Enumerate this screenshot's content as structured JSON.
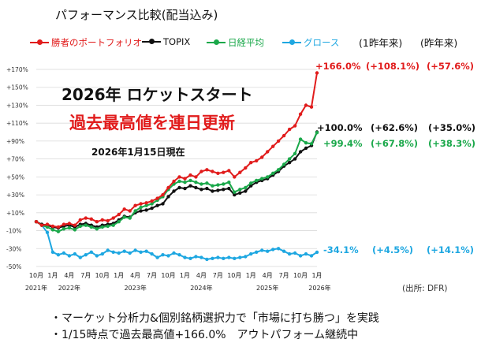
{
  "chart_data": {
    "type": "line",
    "title": "パフォーマンス比較(配当込み)",
    "y_ticks": [
      "+170%",
      "+150%",
      "+130%",
      "+110%",
      "+90%",
      "+70%",
      "+50%",
      "+30%",
      "+10%",
      "-10%",
      "-30%",
      "-50%"
    ],
    "ylim": [
      -50,
      170
    ],
    "x_ticks": [
      {
        "label": "10月",
        "t": 0
      },
      {
        "label": "1月",
        "t": 3
      },
      {
        "label": "4月",
        "t": 6
      },
      {
        "label": "7月",
        "t": 9
      },
      {
        "label": "10月",
        "t": 12
      },
      {
        "label": "1月",
        "t": 15
      },
      {
        "label": "4月",
        "t": 18
      },
      {
        "label": "7月",
        "t": 21
      },
      {
        "label": "10月",
        "t": 24
      },
      {
        "label": "1月",
        "t": 27
      },
      {
        "label": "4月",
        "t": 30
      },
      {
        "label": "7月",
        "t": 33
      },
      {
        "label": "10月",
        "t": 36
      },
      {
        "label": "1月",
        "t": 39
      },
      {
        "label": "4月",
        "t": 42
      },
      {
        "label": "7月",
        "t": 45
      },
      {
        "label": "10月",
        "t": 48
      },
      {
        "label": "1月",
        "t": 51
      }
    ],
    "year_labels": [
      {
        "label": "2021年",
        "t": 0
      },
      {
        "label": "2022年",
        "t": 6
      },
      {
        "label": "2023年",
        "t": 18
      },
      {
        "label": "2024年",
        "t": 30
      },
      {
        "label": "2025年",
        "t": 42
      },
      {
        "label": "2026年",
        "t": 51.5
      }
    ],
    "series": [
      {
        "name": "勝者のポートフォリオ",
        "color": "#e11c1c",
        "final_label": "+166.0%",
        "points": [
          [
            0,
            0
          ],
          [
            1,
            -4
          ],
          [
            2,
            -3
          ],
          [
            3,
            -5
          ],
          [
            4,
            -6
          ],
          [
            5,
            -3
          ],
          [
            6,
            -2
          ],
          [
            7,
            -4
          ],
          [
            8,
            2
          ],
          [
            9,
            4
          ],
          [
            10,
            3
          ],
          [
            11,
            0
          ],
          [
            12,
            2
          ],
          [
            13,
            1
          ],
          [
            14,
            4
          ],
          [
            15,
            8
          ],
          [
            16,
            14
          ],
          [
            17,
            12
          ],
          [
            18,
            18
          ],
          [
            19,
            20
          ],
          [
            20,
            21
          ],
          [
            21,
            23
          ],
          [
            22,
            26
          ],
          [
            23,
            30
          ],
          [
            24,
            38
          ],
          [
            25,
            45
          ],
          [
            26,
            50
          ],
          [
            27,
            48
          ],
          [
            28,
            52
          ],
          [
            29,
            50
          ],
          [
            30,
            56
          ],
          [
            31,
            58
          ],
          [
            32,
            56
          ],
          [
            33,
            54
          ],
          [
            34,
            55
          ],
          [
            35,
            57
          ],
          [
            36,
            50
          ],
          [
            37,
            55
          ],
          [
            38,
            60
          ],
          [
            39,
            66
          ],
          [
            40,
            68
          ],
          [
            41,
            72
          ],
          [
            42,
            78
          ],
          [
            43,
            84
          ],
          [
            44,
            90
          ],
          [
            45,
            96
          ],
          [
            46,
            103
          ],
          [
            47,
            107
          ],
          [
            48,
            120
          ],
          [
            49,
            130
          ],
          [
            50,
            128
          ],
          [
            51,
            166
          ]
        ]
      },
      {
        "name": "TOPIX",
        "color": "#111111",
        "final_label": "+100.0%",
        "points": [
          [
            0,
            0
          ],
          [
            1,
            -3
          ],
          [
            2,
            -4
          ],
          [
            3,
            -6
          ],
          [
            4,
            -7
          ],
          [
            5,
            -5
          ],
          [
            6,
            -4
          ],
          [
            7,
            -6
          ],
          [
            8,
            -3
          ],
          [
            9,
            -2
          ],
          [
            10,
            -4
          ],
          [
            11,
            -6
          ],
          [
            12,
            -4
          ],
          [
            13,
            -3
          ],
          [
            14,
            -2
          ],
          [
            15,
            2
          ],
          [
            16,
            6
          ],
          [
            17,
            5
          ],
          [
            18,
            10
          ],
          [
            19,
            12
          ],
          [
            20,
            13
          ],
          [
            21,
            15
          ],
          [
            22,
            18
          ],
          [
            23,
            20
          ],
          [
            24,
            28
          ],
          [
            25,
            34
          ],
          [
            26,
            38
          ],
          [
            27,
            37
          ],
          [
            28,
            40
          ],
          [
            29,
            38
          ],
          [
            30,
            36
          ],
          [
            31,
            37
          ],
          [
            32,
            34
          ],
          [
            33,
            35
          ],
          [
            34,
            36
          ],
          [
            35,
            37
          ],
          [
            36,
            30
          ],
          [
            37,
            32
          ],
          [
            38,
            34
          ],
          [
            39,
            40
          ],
          [
            40,
            44
          ],
          [
            41,
            46
          ],
          [
            42,
            48
          ],
          [
            43,
            52
          ],
          [
            44,
            56
          ],
          [
            45,
            62
          ],
          [
            46,
            66
          ],
          [
            47,
            70
          ],
          [
            48,
            78
          ],
          [
            49,
            82
          ],
          [
            50,
            85
          ],
          [
            51,
            100
          ]
        ]
      },
      {
        "name": "日経平均",
        "color": "#1aa84a",
        "final_label": "+99.4%",
        "points": [
          [
            0,
            0
          ],
          [
            1,
            -4
          ],
          [
            2,
            -6
          ],
          [
            3,
            -9
          ],
          [
            4,
            -11
          ],
          [
            5,
            -8
          ],
          [
            6,
            -7
          ],
          [
            7,
            -9
          ],
          [
            8,
            -5
          ],
          [
            9,
            -4
          ],
          [
            10,
            -6
          ],
          [
            11,
            -8
          ],
          [
            12,
            -6
          ],
          [
            13,
            -5
          ],
          [
            14,
            -4
          ],
          [
            15,
            0
          ],
          [
            16,
            5
          ],
          [
            17,
            4
          ],
          [
            18,
            12
          ],
          [
            19,
            16
          ],
          [
            20,
            18
          ],
          [
            21,
            20
          ],
          [
            22,
            24
          ],
          [
            23,
            28
          ],
          [
            24,
            36
          ],
          [
            25,
            42
          ],
          [
            26,
            45
          ],
          [
            27,
            44
          ],
          [
            28,
            46
          ],
          [
            29,
            44
          ],
          [
            30,
            42
          ],
          [
            31,
            43
          ],
          [
            32,
            40
          ],
          [
            33,
            41
          ],
          [
            34,
            42
          ],
          [
            35,
            44
          ],
          [
            36,
            33
          ],
          [
            37,
            36
          ],
          [
            38,
            38
          ],
          [
            39,
            43
          ],
          [
            40,
            46
          ],
          [
            41,
            48
          ],
          [
            42,
            50
          ],
          [
            43,
            54
          ],
          [
            44,
            58
          ],
          [
            45,
            64
          ],
          [
            46,
            70
          ],
          [
            47,
            76
          ],
          [
            48,
            92
          ],
          [
            49,
            88
          ],
          [
            50,
            87
          ],
          [
            51,
            99.4
          ]
        ]
      },
      {
        "name": "グロース",
        "color": "#1ea7e1",
        "final_label": "-34.1%",
        "points": [
          [
            0,
            0
          ],
          [
            1,
            -4
          ],
          [
            2,
            -12
          ],
          [
            3,
            -34
          ],
          [
            4,
            -37
          ],
          [
            5,
            -35
          ],
          [
            6,
            -38
          ],
          [
            7,
            -36
          ],
          [
            8,
            -40
          ],
          [
            9,
            -37
          ],
          [
            10,
            -34
          ],
          [
            11,
            -38
          ],
          [
            12,
            -36
          ],
          [
            13,
            -32
          ],
          [
            14,
            -34
          ],
          [
            15,
            -35
          ],
          [
            16,
            -33
          ],
          [
            17,
            -35
          ],
          [
            18,
            -32
          ],
          [
            19,
            -34
          ],
          [
            20,
            -33
          ],
          [
            21,
            -36
          ],
          [
            22,
            -40
          ],
          [
            23,
            -37
          ],
          [
            24,
            -38
          ],
          [
            25,
            -35
          ],
          [
            26,
            -37
          ],
          [
            27,
            -40
          ],
          [
            28,
            -41
          ],
          [
            29,
            -39
          ],
          [
            30,
            -40
          ],
          [
            31,
            -42
          ],
          [
            32,
            -41
          ],
          [
            33,
            -40
          ],
          [
            34,
            -41
          ],
          [
            35,
            -40
          ],
          [
            36,
            -41
          ],
          [
            37,
            -40
          ],
          [
            38,
            -39
          ],
          [
            39,
            -36
          ],
          [
            40,
            -34
          ],
          [
            41,
            -32
          ],
          [
            42,
            -33
          ],
          [
            43,
            -31
          ],
          [
            44,
            -30
          ],
          [
            45,
            -33
          ],
          [
            46,
            -36
          ],
          [
            47,
            -35
          ],
          [
            48,
            -38
          ],
          [
            49,
            -36
          ],
          [
            50,
            -38
          ],
          [
            51,
            -34.1
          ]
        ]
      }
    ]
  },
  "title": "パフォーマンス比較(配当込み)",
  "legend": [
    {
      "label": "勝者のポートフォリオ",
      "color": "#e11c1c"
    },
    {
      "label": "TOPIX",
      "color": "#111111"
    },
    {
      "label": "日経平均",
      "color": "#1aa84a"
    },
    {
      "label": "グロース",
      "color": "#1ea7e1"
    }
  ],
  "columns": {
    "one_year": "(1昨年来)",
    "since_last_year": "(昨年来)"
  },
  "returns": [
    {
      "one_year": "(+108.1%)",
      "since": "(+57.6%)",
      "color": "#e11c1c"
    },
    {
      "one_year": "(+62.6%)",
      "since": "(+35.0%)",
      "color": "#111111"
    },
    {
      "one_year": "(+67.8%)",
      "since": "(+38.3%)",
      "color": "#1aa84a"
    },
    {
      "one_year": "(+4.5%)",
      "since": "(+14.1%)",
      "color": "#1ea7e1"
    }
  ],
  "headline": "2026年 ロケットスタート",
  "headline_2": "過去最高値を連日更新",
  "date_note": "2026年1月15日現在",
  "source": "(出所: DFR)",
  "bullets": [
    "・マーケット分析力&個別銘柄選択力で「市場に打ち勝つ」を実践",
    "・1/15時点で過去最高値+166.0%　アウトパフォーム継続中"
  ]
}
